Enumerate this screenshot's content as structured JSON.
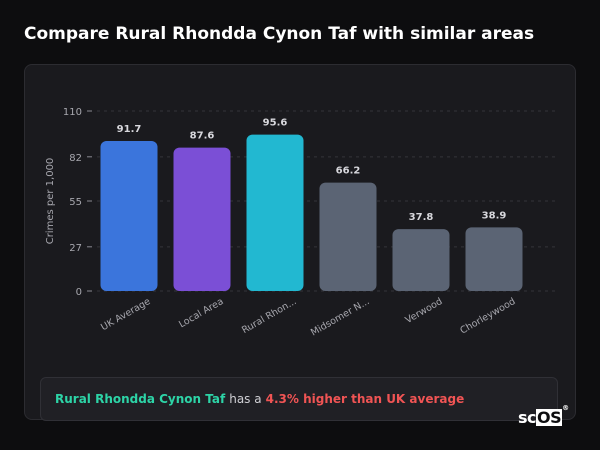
{
  "page": {
    "title": "Compare Rural Rhondda Cynon Taf with similar areas"
  },
  "chart_data": {
    "type": "bar",
    "ylabel": "Crimes per 1,000",
    "xlabel": "",
    "ylim": [
      0,
      110
    ],
    "yticks": [
      0,
      27,
      55,
      82,
      110
    ],
    "grid": true,
    "categories": [
      "UK Average",
      "Local Area",
      "Rural Rhon...",
      "Midsomer N...",
      "Verwood",
      "Chorleywood"
    ],
    "values": [
      91.7,
      87.6,
      95.6,
      66.2,
      37.8,
      38.9
    ],
    "value_labels": [
      "91.7",
      "87.6",
      "95.6",
      "66.2",
      "37.8",
      "38.9"
    ],
    "colors": [
      "#3b75dc",
      "#7b4fd6",
      "#22b8d1",
      "#5b6474",
      "#5b6474",
      "#5b6474"
    ]
  },
  "summary": {
    "area_name": "Rural Rhondda Cynon Taf",
    "middle": "has a",
    "difference": "4.3% higher than UK average"
  },
  "logo": {
    "text_a": "sc",
    "text_b": "OS",
    "mark": "®"
  }
}
